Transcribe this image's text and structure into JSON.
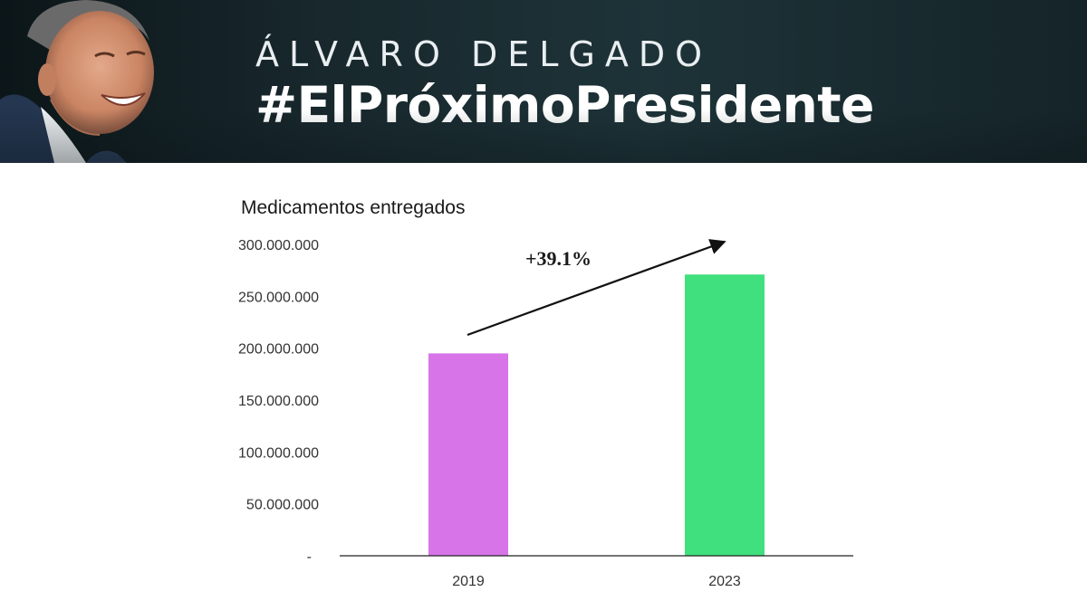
{
  "header": {
    "name": "ÁLVARO DELGADO",
    "hashtag": "#ElPróximoPresidente"
  },
  "colors": {
    "banner_bg": "#1d3338",
    "bar_2019": "#d774e8",
    "bar_2023": "#41e07e"
  },
  "chart_data": {
    "type": "bar",
    "title": "Medicamentos entregados",
    "categories": [
      "2019",
      "2023"
    ],
    "values": [
      195000000,
      271000000
    ],
    "colors": [
      "#d774e8",
      "#41e07e"
    ],
    "ylim": [
      0,
      300000000
    ],
    "y_ticks": [
      {
        "value": 300000000,
        "label": "300.000.000"
      },
      {
        "value": 250000000,
        "label": "250.000.000"
      },
      {
        "value": 200000000,
        "label": "200.000.000"
      },
      {
        "value": 150000000,
        "label": "150.000.000"
      },
      {
        "value": 100000000,
        "label": "100.000.000"
      },
      {
        "value": 50000000,
        "label": "50.000.000"
      },
      {
        "value": 0,
        "label": "-"
      }
    ],
    "grid": false,
    "annotation": "+39.1%"
  }
}
